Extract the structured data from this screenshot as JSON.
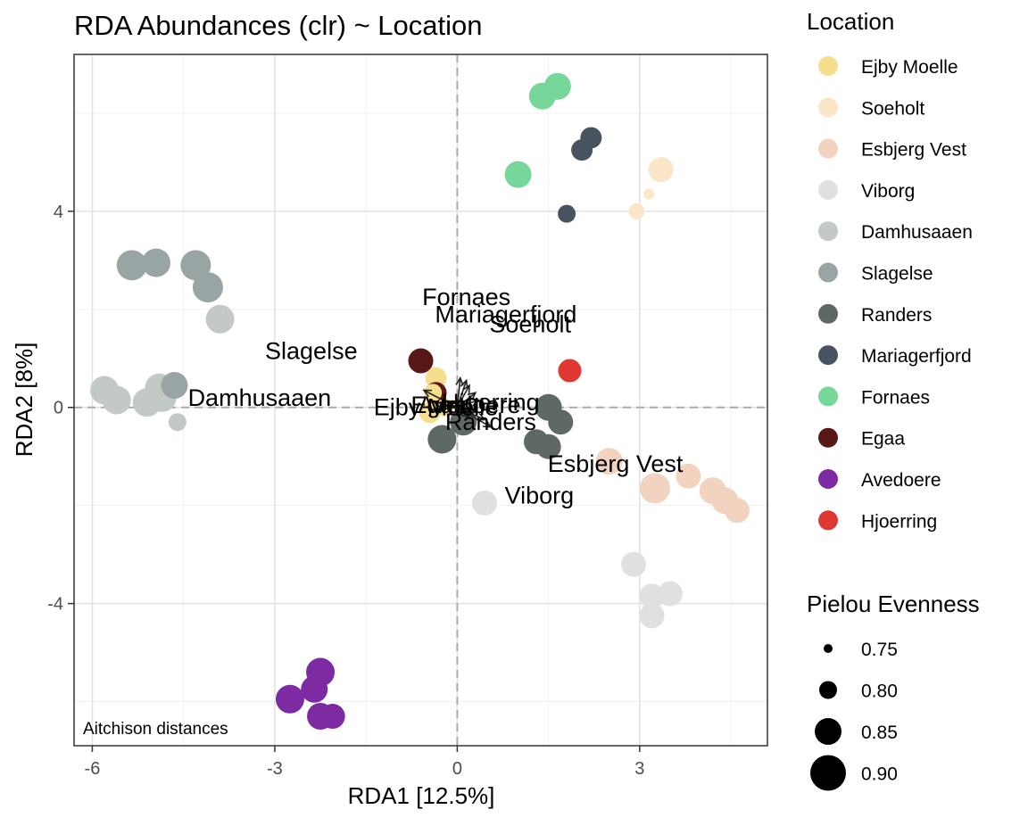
{
  "chart_data": {
    "type": "scatter",
    "title": "RDA Abundances (clr) ~ Location",
    "xlabel": "RDA1   [12.5%]",
    "ylabel": "RDA2   [8%]",
    "xlim": [
      -6.3,
      5.1
    ],
    "ylim": [
      -6.9,
      7.2
    ],
    "x_ticks": [
      -6,
      -3,
      0,
      3
    ],
    "y_ticks": [
      -4,
      0,
      4
    ],
    "grid": true,
    "reference_lines": {
      "x": 0,
      "y": 0,
      "style": "dashed"
    },
    "annotation": "Aitchison distances",
    "legend": {
      "placement": "right",
      "color_title": "Location",
      "size_title": "Pielou Evenness",
      "sizes": [
        0.75,
        0.8,
        0.85,
        0.9
      ]
    },
    "series": [
      {
        "name": "Ejby Moelle",
        "color": "#F5DE8E",
        "points": [
          [
            -0.35,
            0.6,
            0.82
          ],
          [
            -0.4,
            0.3,
            0.8
          ],
          [
            -0.45,
            -0.1,
            0.82
          ],
          [
            -0.2,
            0.0,
            0.8
          ]
        ]
      },
      {
        "name": "Soeholt",
        "color": "#FCE6C8",
        "points": [
          [
            3.35,
            4.85,
            0.84
          ],
          [
            3.15,
            4.35,
            0.76
          ],
          [
            2.95,
            4.0,
            0.79
          ]
        ]
      },
      {
        "name": "Esbjerg Vest",
        "color": "#F2D3BF",
        "points": [
          [
            2.5,
            -1.1,
            0.85
          ],
          [
            3.25,
            -1.65,
            0.87
          ],
          [
            3.8,
            -1.4,
            0.84
          ],
          [
            4.2,
            -1.7,
            0.85
          ],
          [
            4.4,
            -1.9,
            0.85
          ],
          [
            4.6,
            -2.1,
            0.84
          ]
        ]
      },
      {
        "name": "Viborg",
        "color": "#DFE1E0",
        "points": [
          [
            0.45,
            -1.95,
            0.84
          ],
          [
            2.9,
            -3.2,
            0.84
          ],
          [
            3.2,
            -3.85,
            0.84
          ],
          [
            3.5,
            -3.8,
            0.84
          ],
          [
            3.2,
            -4.25,
            0.84
          ]
        ]
      },
      {
        "name": "Damhusaaen",
        "color": "#C3C9C7",
        "points": [
          [
            -5.8,
            0.35,
            0.86
          ],
          [
            -5.6,
            0.15,
            0.86
          ],
          [
            -5.1,
            0.1,
            0.86
          ],
          [
            -4.9,
            0.4,
            0.86
          ],
          [
            -4.85,
            0.2,
            0.86
          ],
          [
            -3.9,
            1.8,
            0.86
          ],
          [
            -4.6,
            -0.3,
            0.8
          ]
        ]
      },
      {
        "name": "Slagelse",
        "color": "#99A4A4",
        "points": [
          [
            -5.35,
            2.9,
            0.87
          ],
          [
            -4.95,
            2.95,
            0.86
          ],
          [
            -4.3,
            2.9,
            0.87
          ],
          [
            -4.1,
            2.45,
            0.87
          ],
          [
            -4.65,
            0.45,
            0.85
          ]
        ]
      },
      {
        "name": "Randers",
        "color": "#5E6965",
        "points": [
          [
            -0.25,
            -0.65,
            0.86
          ],
          [
            0.1,
            -0.3,
            0.85
          ],
          [
            1.5,
            0.0,
            0.85
          ],
          [
            1.7,
            -0.3,
            0.84
          ],
          [
            1.3,
            -0.7,
            0.84
          ],
          [
            1.5,
            -0.8,
            0.84
          ]
        ]
      },
      {
        "name": "Mariagerfjord",
        "color": "#47535F",
        "points": [
          [
            2.2,
            5.5,
            0.82
          ],
          [
            2.05,
            5.25,
            0.82
          ],
          [
            1.8,
            3.95,
            0.8
          ]
        ]
      },
      {
        "name": "Fornaes",
        "color": "#77D699",
        "points": [
          [
            1.65,
            6.55,
            0.85
          ],
          [
            1.4,
            6.35,
            0.85
          ],
          [
            1.0,
            4.75,
            0.85
          ]
        ]
      },
      {
        "name": "Egaa",
        "color": "#581818",
        "points": [
          [
            -0.6,
            0.95,
            0.84
          ],
          [
            -0.35,
            0.3,
            0.82
          ]
        ]
      },
      {
        "name": "Avedoere",
        "color": "#7D2BA3",
        "points": [
          [
            -2.25,
            -5.4,
            0.86
          ],
          [
            -2.35,
            -5.75,
            0.85
          ],
          [
            -2.75,
            -5.95,
            0.86
          ],
          [
            -2.25,
            -6.3,
            0.85
          ],
          [
            -2.05,
            -6.3,
            0.84
          ]
        ]
      },
      {
        "name": "Hjoerring",
        "color": "#DF3832",
        "points": [
          [
            1.85,
            0.75,
            0.83
          ]
        ]
      }
    ],
    "centroid_labels": [
      {
        "text": "Fornaes",
        "x": 0.15,
        "y": 2.25
      },
      {
        "text": "Mariagerfjord",
        "x": 0.8,
        "y": 1.9
      },
      {
        "text": "Soeholt",
        "x": 1.2,
        "y": 1.7
      },
      {
        "text": "Slagelse",
        "x": -2.4,
        "y": 1.15
      },
      {
        "text": "Damhusaaen",
        "x": -3.25,
        "y": 0.2
      },
      {
        "text": "Ejby Moelle",
        "x": -0.35,
        "y": 0.0
      },
      {
        "text": "Egaa",
        "x": -0.3,
        "y": 0.05
      },
      {
        "text": "Hjoerring",
        "x": 0.55,
        "y": 0.1
      },
      {
        "text": "Randers",
        "x": 0.55,
        "y": -0.3
      },
      {
        "text": "Esbjerg Vest",
        "x": 2.6,
        "y": -1.15
      },
      {
        "text": "Viborg",
        "x": 1.35,
        "y": -1.8
      },
      {
        "text": "Avedoere",
        "x": 0.2,
        "y": 0.05
      }
    ],
    "arrows": [
      {
        "x": -0.55,
        "y": 0.35
      },
      {
        "x": -0.4,
        "y": -0.05
      },
      {
        "x": -0.3,
        "y": 0.1
      },
      {
        "x": 0.05,
        "y": 0.6
      },
      {
        "x": 0.15,
        "y": 0.55
      },
      {
        "x": 0.2,
        "y": 0.45
      },
      {
        "x": 0.3,
        "y": 0.3
      },
      {
        "x": 0.35,
        "y": 0.15
      },
      {
        "x": 0.3,
        "y": -0.1
      },
      {
        "x": 0.45,
        "y": -0.25
      },
      {
        "x": 0.55,
        "y": -0.4
      },
      {
        "x": 0.2,
        "y": -0.2
      }
    ]
  }
}
